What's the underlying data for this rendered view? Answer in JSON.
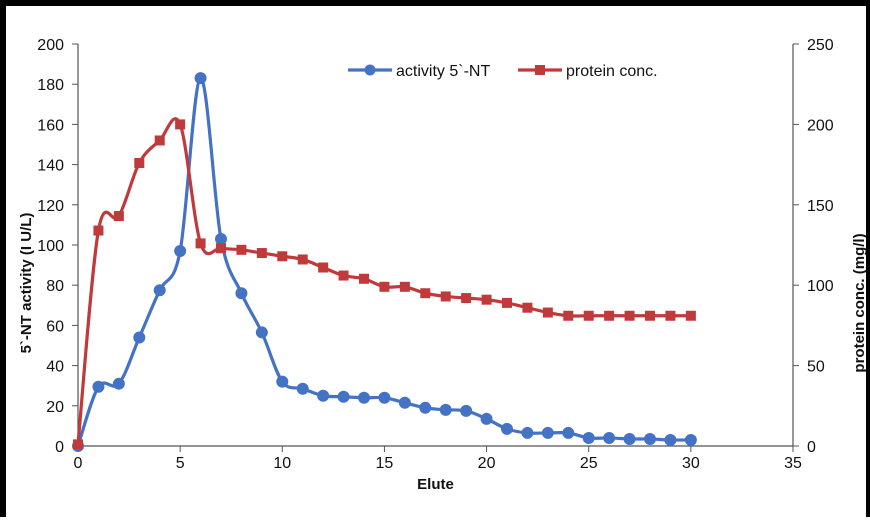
{
  "chart_data": {
    "type": "line",
    "title": "",
    "xlabel": "Elute",
    "ylabel": "5`-NT activity (I U/L)",
    "y2label": "protein conc. (mg/l)",
    "xlim": [
      0,
      35
    ],
    "ylim": [
      0,
      200
    ],
    "y2lim": [
      0,
      250
    ],
    "xticks": [
      0,
      5,
      10,
      15,
      20,
      25,
      30,
      35
    ],
    "yticks": [
      0,
      20,
      40,
      60,
      80,
      100,
      120,
      140,
      160,
      180,
      200
    ],
    "y2ticks": [
      0,
      50,
      100,
      150,
      200,
      250
    ],
    "grid": false,
    "legend_position": "top-right",
    "x": [
      0,
      1,
      2,
      3,
      4,
      5,
      6,
      7,
      8,
      9,
      10,
      11,
      12,
      13,
      14,
      15,
      16,
      17,
      18,
      19,
      20,
      21,
      22,
      23,
      24,
      25,
      26,
      27,
      28,
      29,
      30
    ],
    "series": [
      {
        "name": "activity 5`-NT",
        "axis": "left",
        "color": "#4472C4",
        "marker": "circle",
        "values": [
          0,
          29.5,
          31,
          54,
          77.5,
          97,
          183,
          103,
          76,
          56.5,
          32,
          28.5,
          25,
          24.5,
          24,
          24,
          21.5,
          19,
          18,
          17.5,
          13.5,
          8.5,
          6.5,
          6.5,
          6.5,
          4,
          4,
          3.5,
          3.5,
          3,
          3
        ]
      },
      {
        "name": "protein conc.",
        "axis": "right",
        "color": "#C0393B",
        "marker": "square",
        "values": [
          1,
          134,
          143,
          176,
          190,
          200,
          126,
          123,
          122,
          120,
          118,
          116,
          111,
          106,
          104,
          99,
          99,
          95,
          93,
          92,
          91,
          89,
          86,
          83,
          81,
          81,
          81,
          81,
          81,
          81,
          81
        ]
      }
    ]
  }
}
